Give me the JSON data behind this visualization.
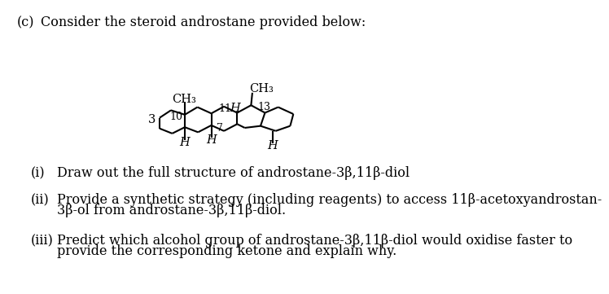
{
  "background_color": "#ffffff",
  "header_label": "(c)",
  "header_text": "Consider the steroid androstane provided below:",
  "q1_label": "(i)",
  "q1_text": "Draw out the full structure of androstane-3β,11β-diol",
  "q2_label": "(ii)",
  "q2_line1": "Provide a synthetic strategy (including reagents) to access 11β-acetoxyandrostan-",
  "q2_line2": "3β-ol from androstane-3β,11β-diol.",
  "q3_label": "(iii)",
  "q3_line1": "Predict which alcohol group of androstane-3β,11β-diol would oxidise faster to",
  "q3_line2": "provide the corresponding ketone and explain why.",
  "lw": 1.5,
  "fs_main": 11.5,
  "fs_struct": 10.5
}
